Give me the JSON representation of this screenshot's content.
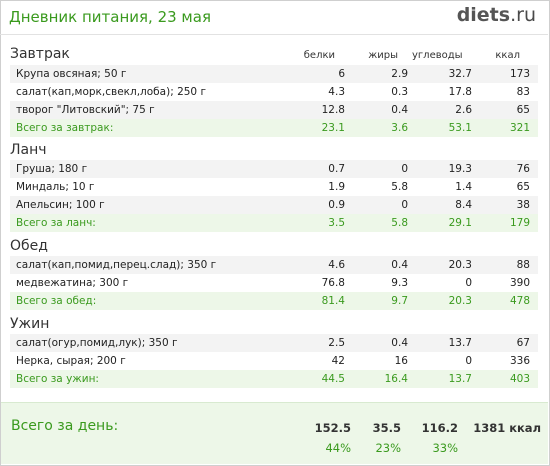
{
  "header": {
    "title": "Дневник питания, 23 мая",
    "logo_main": "diets",
    "logo_tld": ".ru"
  },
  "columns": {
    "protein": "белки",
    "fat": "жиры",
    "carbs": "углеводы",
    "kcal": "ккал"
  },
  "sections": [
    {
      "title": "Завтрак",
      "items": [
        {
          "name": "Крупа овсяная; 50 г",
          "protein": "6",
          "fat": "2.9",
          "carbs": "32.7",
          "kcal": "173"
        },
        {
          "name": "салат(кап,морк,свекл,лоба); 250 г",
          "protein": "4.3",
          "fat": "0.3",
          "carbs": "17.8",
          "kcal": "83"
        },
        {
          "name": "творог \"Литовский\"; 75 г",
          "protein": "12.8",
          "fat": "0.4",
          "carbs": "2.6",
          "kcal": "65"
        }
      ],
      "total": {
        "label": "Всего за завтрак:",
        "protein": "23.1",
        "fat": "3.6",
        "carbs": "53.1",
        "kcal": "321"
      }
    },
    {
      "title": "Ланч",
      "items": [
        {
          "name": "Груша; 180 г",
          "protein": "0.7",
          "fat": "0",
          "carbs": "19.3",
          "kcal": "76"
        },
        {
          "name": "Миндаль; 10 г",
          "protein": "1.9",
          "fat": "5.8",
          "carbs": "1.4",
          "kcal": "65"
        },
        {
          "name": "Апельсин; 100 г",
          "protein": "0.9",
          "fat": "0",
          "carbs": "8.4",
          "kcal": "38"
        }
      ],
      "total": {
        "label": "Всего за ланч:",
        "protein": "3.5",
        "fat": "5.8",
        "carbs": "29.1",
        "kcal": "179"
      }
    },
    {
      "title": "Обед",
      "items": [
        {
          "name": "салат(кап,помид,перец.слад); 350 г",
          "protein": "4.6",
          "fat": "0.4",
          "carbs": "20.3",
          "kcal": "88"
        },
        {
          "name": "медвежатина; 300 г",
          "protein": "76.8",
          "fat": "9.3",
          "carbs": "0",
          "kcal": "390"
        }
      ],
      "total": {
        "label": "Всего за обед:",
        "protein": "81.4",
        "fat": "9.7",
        "carbs": "20.3",
        "kcal": "478"
      }
    },
    {
      "title": "Ужин",
      "items": [
        {
          "name": "салат(огур,помид,лук); 350 г",
          "protein": "2.5",
          "fat": "0.4",
          "carbs": "13.7",
          "kcal": "67"
        },
        {
          "name": "Нерка, сырая; 200 г",
          "protein": "42",
          "fat": "16",
          "carbs": "0",
          "kcal": "336"
        }
      ],
      "total": {
        "label": "Всего за ужин:",
        "protein": "44.5",
        "fat": "16.4",
        "carbs": "13.7",
        "kcal": "403"
      }
    }
  ],
  "day_total": {
    "label": "Всего за день:",
    "protein": "152.5",
    "fat": "35.5",
    "carbs": "116.2",
    "kcal": "1381 ккал",
    "protein_pct": "44%",
    "fat_pct": "23%",
    "carbs_pct": "33%"
  }
}
